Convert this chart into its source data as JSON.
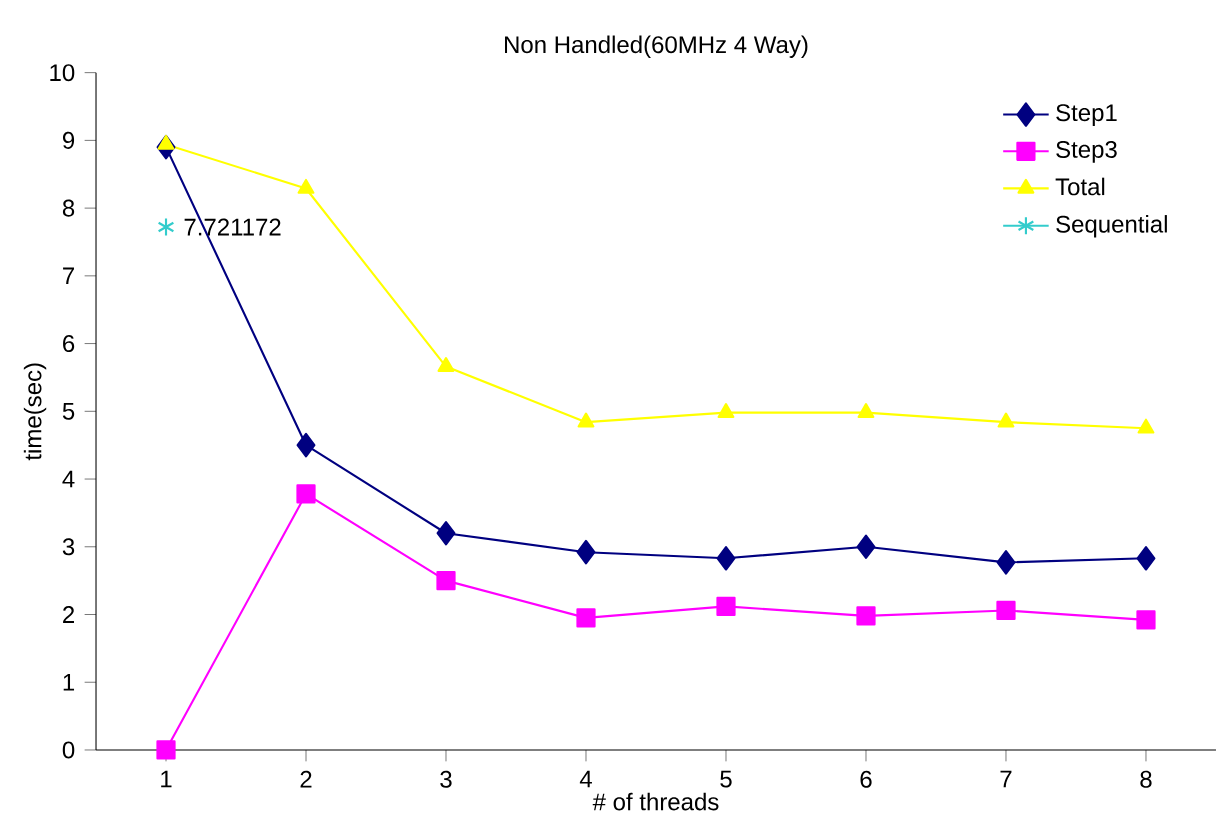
{
  "chart_data": {
    "type": "line",
    "title": "Non Handled(60MHz 4 Way)",
    "xlabel": "# of threads",
    "ylabel": "time(sec)",
    "categories": [
      "1",
      "2",
      "3",
      "4",
      "5",
      "6",
      "7",
      "8"
    ],
    "series": [
      {
        "name": "Step1",
        "color": "#000080",
        "marker": "diamond",
        "values": [
          8.9,
          4.5,
          3.2,
          2.92,
          2.83,
          3.0,
          2.77,
          2.83
        ]
      },
      {
        "name": "Step3",
        "color": "#ff00ff",
        "marker": "square",
        "values": [
          0,
          3.78,
          2.5,
          1.95,
          2.12,
          1.98,
          2.06,
          1.92
        ]
      },
      {
        "name": "Total",
        "color": "#ffff00",
        "marker": "triangle",
        "values": [
          8.94,
          8.29,
          5.66,
          4.84,
          4.98,
          4.98,
          4.84,
          4.75
        ]
      },
      {
        "name": "Sequential",
        "color": "#33cccc",
        "marker": "cross",
        "values": [
          7.721172,
          null,
          null,
          null,
          null,
          null,
          null,
          null
        ],
        "value_labels": [
          "7.721172",
          null,
          null,
          null,
          null,
          null,
          null,
          null
        ]
      }
    ],
    "ylim": [
      0,
      10
    ],
    "yticks": [
      0,
      1,
      2,
      3,
      4,
      5,
      6,
      7,
      8,
      9,
      10
    ],
    "legend": "top right",
    "grid": false
  }
}
